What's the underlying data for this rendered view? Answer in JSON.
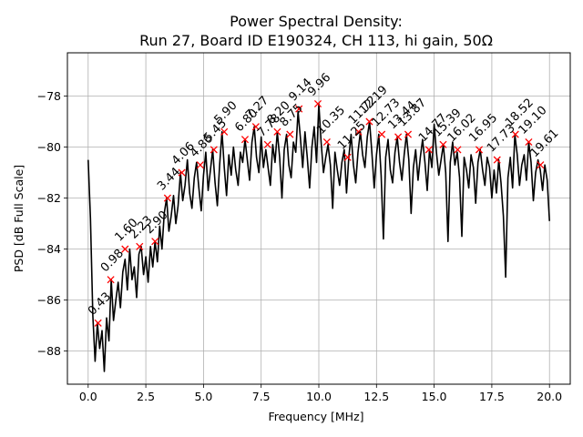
{
  "chart_data": {
    "type": "line",
    "title": "Power Spectral Density:",
    "subtitle": "Run 27, Board ID E190324, CH 113, hi gain, 50Ω",
    "xlabel": "Frequency [MHz]",
    "ylabel": "PSD [dB Full Scale]",
    "xlim": [
      -0.9,
      20.9
    ],
    "ylim": [
      -89.3,
      -76.3
    ],
    "xticks": [
      0.0,
      2.5,
      5.0,
      7.5,
      10.0,
      12.5,
      15.0,
      17.5,
      20.0
    ],
    "xtick_labels": [
      "0.0",
      "2.5",
      "5.0",
      "7.5",
      "10.0",
      "12.5",
      "15.0",
      "17.5",
      "20.0"
    ],
    "yticks": [
      -88,
      -86,
      -84,
      -82,
      -80,
      -78
    ],
    "ytick_labels": [
      "−88",
      "−86",
      "−84",
      "−82",
      "−80",
      "−78"
    ],
    "grid": true,
    "line_color": "#000000",
    "marker_color": "#ff0000",
    "series": [
      {
        "x": [
          0.0,
          0.1,
          0.2,
          0.3,
          0.4,
          0.5,
          0.6,
          0.7,
          0.8,
          0.9,
          1.0,
          1.1,
          1.2,
          1.3,
          1.4,
          1.5,
          1.6,
          1.7,
          1.8,
          1.9,
          2.0,
          2.1,
          2.2,
          2.3,
          2.4,
          2.5,
          2.6,
          2.7,
          2.8,
          2.9,
          3.0,
          3.1,
          3.2,
          3.3,
          3.4,
          3.5,
          3.6,
          3.7,
          3.8,
          3.9,
          4.0,
          4.1,
          4.2,
          4.3,
          4.4,
          4.5,
          4.6,
          4.7,
          4.8,
          4.9,
          5.0,
          5.1,
          5.2,
          5.3,
          5.4,
          5.5,
          5.6,
          5.7,
          5.8,
          5.9,
          6.0,
          6.1,
          6.2,
          6.3,
          6.4,
          6.5,
          6.6,
          6.7,
          6.8,
          6.9,
          7.0,
          7.1,
          7.2,
          7.3,
          7.4,
          7.5,
          7.6,
          7.7,
          7.8,
          7.9,
          8.0,
          8.1,
          8.2,
          8.3,
          8.4,
          8.5,
          8.6,
          8.7,
          8.8,
          8.9,
          9.0,
          9.1,
          9.2,
          9.3,
          9.4,
          9.5,
          9.6,
          9.7,
          9.8,
          9.9,
          10.0,
          10.1,
          10.2,
          10.3,
          10.4,
          10.5,
          10.6,
          10.7,
          10.8,
          10.9,
          11.0,
          11.1,
          11.2,
          11.3,
          11.4,
          11.5,
          11.6,
          11.7,
          11.8,
          11.9,
          12.0,
          12.1,
          12.2,
          12.3,
          12.4,
          12.5,
          12.6,
          12.7,
          12.8,
          12.9,
          13.0,
          13.1,
          13.2,
          13.3,
          13.4,
          13.5,
          13.6,
          13.7,
          13.8,
          13.9,
          14.0,
          14.1,
          14.2,
          14.3,
          14.4,
          14.5,
          14.6,
          14.7,
          14.8,
          14.9,
          15.0,
          15.1,
          15.2,
          15.3,
          15.4,
          15.5,
          15.6,
          15.7,
          15.8,
          15.9,
          16.0,
          16.1,
          16.2,
          16.3,
          16.4,
          16.5,
          16.6,
          16.7,
          16.8,
          16.9,
          17.0,
          17.1,
          17.2,
          17.3,
          17.4,
          17.5,
          17.6,
          17.7,
          17.8,
          17.9,
          18.0,
          18.1,
          18.2,
          18.3,
          18.4,
          18.5,
          18.6,
          18.7,
          18.8,
          18.9,
          19.0,
          19.1,
          19.2,
          19.3,
          19.4,
          19.5,
          19.6,
          19.7,
          19.8,
          19.9,
          20.0
        ],
        "values": [
          -80.5,
          -82.8,
          -86.6,
          -88.4,
          -86.9,
          -87.9,
          -87.2,
          -88.8,
          -86.7,
          -87.6,
          -85.2,
          -86.8,
          -86.0,
          -85.3,
          -86.3,
          -84.9,
          -84.4,
          -85.6,
          -84.0,
          -85.2,
          -84.7,
          -85.9,
          -84.2,
          -83.9,
          -85.0,
          -84.3,
          -85.3,
          -83.9,
          -84.7,
          -83.7,
          -84.5,
          -83.1,
          -84.0,
          -82.6,
          -82.0,
          -83.3,
          -82.7,
          -81.9,
          -83.0,
          -82.3,
          -81.0,
          -82.1,
          -81.5,
          -80.5,
          -81.8,
          -82.4,
          -81.2,
          -80.6,
          -81.6,
          -82.5,
          -81.1,
          -80.2,
          -81.7,
          -80.9,
          -80.1,
          -81.4,
          -82.3,
          -80.7,
          -79.4,
          -80.8,
          -81.9,
          -80.3,
          -81.1,
          -80.0,
          -80.9,
          -81.5,
          -80.2,
          -80.6,
          -79.7,
          -80.5,
          -81.3,
          -79.8,
          -79.2,
          -80.4,
          -81.0,
          -79.6,
          -80.8,
          -80.1,
          -80.8,
          -81.5,
          -79.9,
          -80.6,
          -79.4,
          -80.4,
          -82.0,
          -80.1,
          -79.5,
          -80.7,
          -81.2,
          -79.8,
          -80.2,
          -78.6,
          -79.6,
          -80.8,
          -79.4,
          -80.4,
          -81.6,
          -80.0,
          -79.2,
          -80.6,
          -78.3,
          -79.8,
          -81.0,
          -80.4,
          -79.9,
          -80.7,
          -82.4,
          -80.2,
          -80.9,
          -81.5,
          -80.6,
          -80.1,
          -81.8,
          -80.4,
          -79.5,
          -80.7,
          -81.4,
          -80.2,
          -79.4,
          -80.3,
          -80.8,
          -79.6,
          -79.0,
          -80.2,
          -81.6,
          -80.3,
          -79.5,
          -81.1,
          -83.6,
          -80.4,
          -79.7,
          -80.9,
          -81.4,
          -80.2,
          -79.6,
          -80.6,
          -81.3,
          -80.3,
          -79.5,
          -80.5,
          -82.6,
          -80.8,
          -80.1,
          -81.3,
          -80.4,
          -79.7,
          -80.6,
          -81.7,
          -80.1,
          -80.8,
          -79.1,
          -80.2,
          -81.1,
          -80.5,
          -79.9,
          -81.0,
          -83.7,
          -80.6,
          -79.8,
          -80.7,
          -80.2,
          -81.2,
          -83.5,
          -80.4,
          -80.9,
          -81.6,
          -80.3,
          -80.8,
          -82.2,
          -80.6,
          -80.1,
          -80.9,
          -81.5,
          -80.4,
          -80.8,
          -82.0,
          -80.9,
          -81.8,
          -80.5,
          -81.4,
          -82.7,
          -85.1,
          -81.2,
          -80.4,
          -81.6,
          -79.5,
          -80.3,
          -81.5,
          -80.7,
          -80.3,
          -81.3,
          -79.8,
          -80.6,
          -82.1,
          -81.0,
          -80.5,
          -80.9,
          -81.7,
          -80.7,
          -81.3,
          -82.9
        ]
      }
    ],
    "peaks": [
      {
        "x": 0.43,
        "y": -86.9,
        "label": "0.43"
      },
      {
        "x": 0.98,
        "y": -85.2,
        "label": "0.98"
      },
      {
        "x": 1.6,
        "y": -84.0,
        "label": "1.60"
      },
      {
        "x": 2.23,
        "y": -83.9,
        "label": "2.23"
      },
      {
        "x": 2.9,
        "y": -83.7,
        "label": "2.90"
      },
      {
        "x": 3.44,
        "y": -82.0,
        "label": "3.44"
      },
      {
        "x": 4.06,
        "y": -81.0,
        "label": "4.06"
      },
      {
        "x": 4.86,
        "y": -80.7,
        "label": "4.86"
      },
      {
        "x": 5.45,
        "y": -80.1,
        "label": "5.45"
      },
      {
        "x": 5.9,
        "y": -79.4,
        "label": "5.90"
      },
      {
        "x": 6.8,
        "y": -79.7,
        "label": "6.80"
      },
      {
        "x": 7.27,
        "y": -79.2,
        "label": "7.27"
      },
      {
        "x": 7.78,
        "y": -79.9,
        "label": "7.78"
      },
      {
        "x": 8.2,
        "y": -79.4,
        "label": "8.20"
      },
      {
        "x": 8.75,
        "y": -79.5,
        "label": "8.75"
      },
      {
        "x": 9.14,
        "y": -78.5,
        "label": "9.14"
      },
      {
        "x": 9.96,
        "y": -78.3,
        "label": "9.96"
      },
      {
        "x": 10.35,
        "y": -79.8,
        "label": "10.35"
      },
      {
        "x": 11.25,
        "y": -80.4,
        "label": "11.25"
      },
      {
        "x": 11.72,
        "y": -79.4,
        "label": "11.72"
      },
      {
        "x": 12.19,
        "y": -79.0,
        "label": "12.19"
      },
      {
        "x": 12.73,
        "y": -79.5,
        "label": "12.73"
      },
      {
        "x": 13.44,
        "y": -79.6,
        "label": "13.44"
      },
      {
        "x": 13.87,
        "y": -79.5,
        "label": "13.87"
      },
      {
        "x": 14.77,
        "y": -80.1,
        "label": "14.77"
      },
      {
        "x": 15.39,
        "y": -79.9,
        "label": "15.39"
      },
      {
        "x": 16.02,
        "y": -80.1,
        "label": "16.02"
      },
      {
        "x": 16.95,
        "y": -80.1,
        "label": "16.95"
      },
      {
        "x": 17.73,
        "y": -80.5,
        "label": "17.73"
      },
      {
        "x": 18.52,
        "y": -79.5,
        "label": "18.52"
      },
      {
        "x": 19.1,
        "y": -79.8,
        "label": "19.10"
      },
      {
        "x": 19.61,
        "y": -80.7,
        "label": "19.61"
      }
    ]
  }
}
